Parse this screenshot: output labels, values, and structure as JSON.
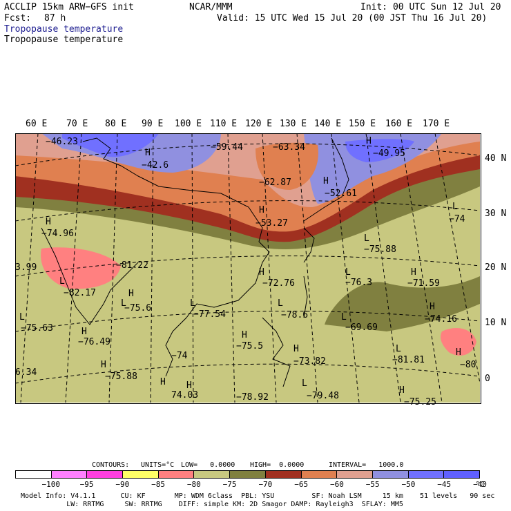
{
  "header": {
    "model": "ACCLIP 15km ARW−GFS init",
    "org": "NCAR/MMM",
    "init": "Init: 00 UTC Sun 12 Jul 20",
    "fcst_label": "Fcst:",
    "fcst_value": "87 h",
    "valid": "Valid: 15 UTC Wed 15 Jul 20 (00 JST Thu 16 Jul 20)",
    "field_title_blue": "Tropopause temperature",
    "field_title_black": "Tropopause temperature"
  },
  "axes": {
    "longitude_labels": [
      "60 E",
      "70 E",
      "80 E",
      "90 E",
      "100 E",
      "110 E",
      "120 E",
      "130 E",
      "140 E",
      "150 E",
      "160 E",
      "170 E"
    ],
    "latitude_labels": [
      "40 N",
      "30 N",
      "20 N",
      "10 N",
      "0"
    ]
  },
  "map_labels": [
    {
      "text": "−46.23"
    },
    {
      "text": "H"
    },
    {
      "text": "−42.6"
    },
    {
      "text": "−59.44"
    },
    {
      "text": "−63.34"
    },
    {
      "text": "H"
    },
    {
      "text": "−49.95"
    },
    {
      "text": "−62.87"
    },
    {
      "text": "H"
    },
    {
      "text": "−52.61"
    },
    {
      "text": "H"
    },
    {
      "text": "−53.27"
    },
    {
      "text": "H"
    },
    {
      "text": "−74.96"
    },
    {
      "text": "L"
    },
    {
      "text": "−74"
    },
    {
      "text": "−81.22"
    },
    {
      "text": "3.99"
    },
    {
      "text": "L"
    },
    {
      "text": "−75.88"
    },
    {
      "text": "L"
    },
    {
      "text": "−82.17"
    },
    {
      "text": "H"
    },
    {
      "text": "−72.76"
    },
    {
      "text": "L"
    },
    {
      "text": "−76.3"
    },
    {
      "text": "H"
    },
    {
      "text": "−71.59"
    },
    {
      "text": "H"
    },
    {
      "text": "L"
    },
    {
      "text": "−75.6"
    },
    {
      "text": "L"
    },
    {
      "text": "−77.54"
    },
    {
      "text": "L"
    },
    {
      "text": "−78.6"
    },
    {
      "text": "H"
    },
    {
      "text": "−74.16"
    },
    {
      "text": "L"
    },
    {
      "text": "−75.63"
    },
    {
      "text": "L"
    },
    {
      "text": "−69.69"
    },
    {
      "text": "H"
    },
    {
      "text": "−76.49"
    },
    {
      "text": "H"
    },
    {
      "text": "−75.5"
    },
    {
      "text": "H"
    },
    {
      "text": "−73.82"
    },
    {
      "text": "L"
    },
    {
      "text": "−81.81"
    },
    {
      "text": "H"
    },
    {
      "text": "−80"
    },
    {
      "text": "6.34"
    },
    {
      "text": "H"
    },
    {
      "text": "−74"
    },
    {
      "text": "−75.88"
    },
    {
      "text": "H"
    },
    {
      "text": "H"
    },
    {
      "text": "L"
    },
    {
      "text": "74.03"
    },
    {
      "text": "−78.92"
    },
    {
      "text": "−79.48"
    },
    {
      "text": "H"
    },
    {
      "text": "−75.25"
    }
  ],
  "contours_line": {
    "label": "CONTOURS:",
    "units": "UNITS=°C",
    "low": "LOW=   0.0000",
    "high": "HIGH=  0.0000",
    "interval": "INTERVAL=   1000.0"
  },
  "colorbar": {
    "colors": [
      "#ffffff",
      "#ff80ff",
      "#ff40e0",
      "#ffff66",
      "#ff8080",
      "#c8c880",
      "#808040",
      "#a03020",
      "#e08050",
      "#e0a090",
      "#9090e0",
      "#7070ff",
      "#6060ff"
    ],
    "tick_labels": [
      "−100",
      "−95",
      "−90",
      "−85",
      "−80",
      "−75",
      "−70",
      "−65",
      "−60",
      "−55",
      "−50",
      "−45",
      "−40"
    ],
    "unit": "°C"
  },
  "model_info": {
    "line1": "Model Info: V4.1.1      CU: KF       MP: WDM 6class  PBL: YSU         SF: Noah LSM     15 km    51 levels   90 sec",
    "line2": "           LW: RRTMG     SW: RRTMG    DIFF: simple KM: 2D Smagor DAMP: Rayleigh3  SFLAY: MM5"
  }
}
